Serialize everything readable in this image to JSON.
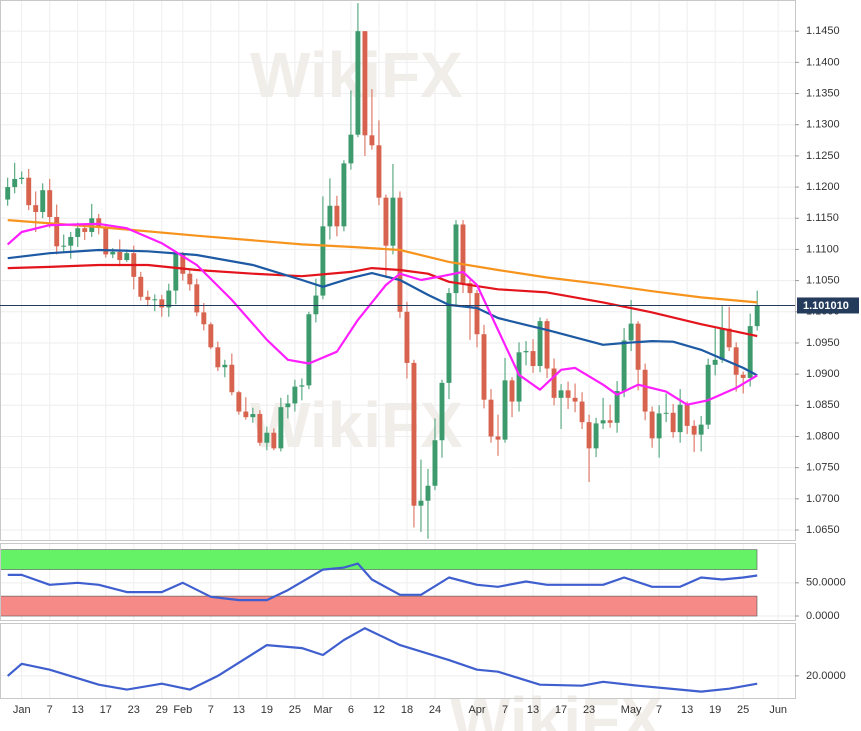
{
  "watermark": "WikiFX",
  "chart_data": [
    {
      "type": "candlestick",
      "xlim": [
        -1.1,
        112.4
      ],
      "ylim": [
        1.0634,
        1.15
      ],
      "grid": true,
      "up_color": "#3c9a6c",
      "down_color": "#d7624e",
      "yticks": [
        {
          "value": 1.065,
          "label": "1.0650"
        },
        {
          "value": 1.07,
          "label": "1.0700"
        },
        {
          "value": 1.075,
          "label": "1.0750"
        },
        {
          "value": 1.08,
          "label": "1.0800"
        },
        {
          "value": 1.085,
          "label": "1.0850"
        },
        {
          "value": 1.09,
          "label": "1.0900"
        },
        {
          "value": 1.095,
          "label": "1.0950"
        },
        {
          "value": 1.1,
          "label": "1.1000"
        },
        {
          "value": 1.105,
          "label": "1.1050"
        },
        {
          "value": 1.11,
          "label": "1.1100"
        },
        {
          "value": 1.115,
          "label": "1.1150"
        },
        {
          "value": 1.12,
          "label": "1.1200"
        },
        {
          "value": 1.125,
          "label": "1.1250"
        },
        {
          "value": 1.13,
          "label": "1.1300"
        },
        {
          "value": 1.135,
          "label": "1.1350"
        },
        {
          "value": 1.14,
          "label": "1.1400"
        },
        {
          "value": 1.145,
          "label": "1.1450"
        }
      ],
      "open": [
        1.118,
        1.12,
        1.1213,
        1.1215,
        1.1171,
        1.116,
        1.1195,
        1.1152,
        1.1105,
        1.1106,
        1.112,
        1.1134,
        1.1128,
        1.115,
        1.1136,
        1.1092,
        1.1096,
        1.1083,
        1.1094,
        1.1056,
        1.1024,
        1.1019,
        1.102,
        1.1007,
        1.1034,
        1.1093,
        1.1061,
        1.1044,
        1.0999,
        1.098,
        1.0943,
        1.0911,
        1.0915,
        1.0871,
        1.084,
        1.0831,
        1.0836,
        1.079,
        1.0806,
        1.0781,
        1.0847,
        1.0853,
        1.088,
        1.0882,
        1.0996,
        1.1026,
        1.1137,
        1.117,
        1.1137,
        1.1238,
        1.1284,
        1.145,
        1.1283,
        1.1267,
        1.1183,
        1.1106,
        1.1183,
        1.1,
        1.0918,
        1.0689,
        1.0697,
        1.0721,
        1.0794,
        1.0886,
        1.103,
        1.114,
        1.1046,
        1.103,
        1.0964,
        1.0859,
        1.08,
        1.0795,
        1.089,
        1.0856,
        1.0935,
        1.0937,
        1.0913,
        1.0985,
        1.0909,
        1.0862,
        1.0874,
        1.0862,
        1.0856,
        1.0823,
        1.0781,
        1.0821,
        1.0826,
        1.0822,
        1.0873,
        1.0954,
        1.0981,
        1.0907,
        1.084,
        1.0797,
        1.0837,
        1.0838,
        1.0807,
        1.0851,
        1.0817,
        1.0803,
        1.0819,
        1.0915,
        1.0923,
        1.0973,
        1.0943,
        1.0899,
        1.0894,
        1.0977
      ],
      "high": [
        1.1215,
        1.1239,
        1.1225,
        1.1229,
        1.1193,
        1.1206,
        1.1213,
        1.1172,
        1.1124,
        1.1128,
        1.1143,
        1.1142,
        1.1173,
        1.1157,
        1.1139,
        1.1102,
        1.1116,
        1.11,
        1.1106,
        1.1064,
        1.1034,
        1.1028,
        1.1027,
        1.1045,
        1.1096,
        1.1096,
        1.1068,
        1.1053,
        1.1014,
        1.0983,
        1.0952,
        1.0923,
        1.0933,
        1.0873,
        1.0863,
        1.0846,
        1.0842,
        1.0816,
        1.0813,
        1.0862,
        1.0867,
        1.0891,
        1.0893,
        1.1,
        1.1053,
        1.1185,
        1.1214,
        1.1186,
        1.1243,
        1.1355,
        1.1495,
        1.145,
        1.1357,
        1.1307,
        1.1188,
        1.1237,
        1.1193,
        1.1016,
        1.0923,
        1.0763,
        1.0748,
        1.0829,
        1.0891,
        1.1038,
        1.1147,
        1.1147,
        1.1054,
        1.1035,
        1.0979,
        1.0876,
        1.0835,
        1.0926,
        1.0895,
        1.0951,
        1.0953,
        1.0956,
        1.0991,
        1.0989,
        1.0925,
        1.0884,
        1.0888,
        1.0885,
        1.0871,
        1.0835,
        1.083,
        1.0862,
        1.0851,
        1.0889,
        1.0974,
        1.1019,
        1.0985,
        1.0917,
        1.0848,
        1.085,
        1.0869,
        1.0852,
        1.0876,
        1.0856,
        1.0826,
        1.0833,
        1.0925,
        1.0976,
        1.1009,
        1.1008,
        1.0951,
        1.0904,
        1.0997,
        1.1034
      ],
      "low": [
        1.117,
        1.119,
        1.1205,
        1.1163,
        1.1128,
        1.115,
        1.1135,
        1.1092,
        1.1095,
        1.1085,
        1.1104,
        1.1115,
        1.112,
        1.1124,
        1.1087,
        1.1086,
        1.1073,
        1.108,
        1.1036,
        1.1018,
        1.1009,
        1.1001,
        1.0992,
        1.0992,
        1.1012,
        1.105,
        1.1034,
        1.0993,
        1.097,
        1.094,
        1.0905,
        1.0895,
        1.0866,
        1.0835,
        1.0827,
        1.0822,
        1.0785,
        1.0778,
        1.0778,
        1.0776,
        1.0829,
        1.084,
        1.0858,
        1.0876,
        1.0983,
        1.102,
        1.1116,
        1.1121,
        1.1129,
        1.1228,
        1.128,
        1.125,
        1.126,
        1.1171,
        1.1054,
        1.1092,
        1.099,
        1.0893,
        1.0654,
        1.0647,
        1.0636,
        1.0714,
        1.0766,
        1.086,
        1.101,
        1.103,
        1.0955,
        1.0943,
        1.0845,
        1.079,
        1.0769,
        1.079,
        1.0831,
        1.084,
        1.0914,
        1.0902,
        1.0903,
        1.0894,
        1.085,
        1.0812,
        1.0844,
        1.0839,
        1.0812,
        1.0727,
        1.0767,
        1.0812,
        1.0814,
        1.0806,
        1.0863,
        1.0937,
        1.0874,
        1.0826,
        1.0782,
        1.0766,
        1.0823,
        1.0798,
        1.079,
        1.0804,
        1.0775,
        1.0776,
        1.0812,
        1.0898,
        1.0918,
        1.0937,
        1.0872,
        1.0869,
        1.088,
        1.097
      ],
      "close": [
        1.12,
        1.1213,
        1.1215,
        1.1171,
        1.116,
        1.1195,
        1.1152,
        1.1105,
        1.1106,
        1.112,
        1.1134,
        1.1128,
        1.115,
        1.1136,
        1.1092,
        1.1096,
        1.1083,
        1.1094,
        1.1056,
        1.1024,
        1.1019,
        1.102,
        1.1007,
        1.1034,
        1.1093,
        1.1061,
        1.1044,
        1.0999,
        1.098,
        1.0943,
        1.0911,
        1.0915,
        1.0871,
        1.084,
        1.0831,
        1.0836,
        1.079,
        1.0806,
        1.0781,
        1.0847,
        1.0853,
        1.088,
        1.0882,
        1.0996,
        1.1026,
        1.1137,
        1.117,
        1.1137,
        1.1238,
        1.1284,
        1.145,
        1.1283,
        1.1267,
        1.1183,
        1.1106,
        1.1183,
        1.1,
        1.0918,
        1.0689,
        1.0697,
        1.0721,
        1.0794,
        1.0886,
        1.103,
        1.114,
        1.1046,
        1.103,
        1.0964,
        1.0859,
        1.08,
        1.0795,
        1.089,
        1.0856,
        1.0935,
        1.0937,
        1.0913,
        1.0985,
        1.0909,
        1.0862,
        1.0874,
        1.0862,
        1.0856,
        1.0823,
        1.0781,
        1.0821,
        1.0826,
        1.0822,
        1.0873,
        1.0954,
        1.0981,
        1.0907,
        1.084,
        1.0797,
        1.0837,
        1.0838,
        1.0807,
        1.0851,
        1.0817,
        1.0803,
        1.0819,
        1.0915,
        1.0923,
        1.0973,
        1.0943,
        1.0899,
        1.0894,
        1.0977,
        1.101
      ],
      "series": [
        {
          "color": "#f7941d",
          "x": [
            0,
            13,
            27,
            42,
            49,
            56,
            63,
            70,
            77,
            85,
            92,
            99,
            107
          ],
          "values": [
            1.1147,
            1.1136,
            1.1122,
            1.1108,
            1.1104,
            1.1099,
            1.108,
            1.1067,
            1.1055,
            1.1044,
            1.1033,
            1.1023,
            1.1015
          ]
        },
        {
          "color": "#e3141c",
          "x": [
            0,
            6,
            13,
            20,
            27,
            35,
            42,
            49,
            52,
            56,
            60,
            63,
            70,
            77,
            85,
            92,
            99,
            107
          ],
          "values": [
            1.107,
            1.1072,
            1.1075,
            1.1075,
            1.1067,
            1.1061,
            1.1057,
            1.1064,
            1.107,
            1.1067,
            1.1061,
            1.1048,
            1.1036,
            1.1031,
            1.1015,
            1.0999,
            1.098,
            1.0961
          ]
        },
        {
          "color": "#1d5aa3",
          "x": [
            0,
            6,
            13,
            20,
            27,
            35,
            42,
            45,
            49,
            52,
            56,
            60,
            63,
            67,
            70,
            74,
            77,
            85,
            88,
            92,
            95,
            99,
            105,
            107
          ],
          "values": [
            1.1086,
            1.1094,
            1.1099,
            1.1097,
            1.1091,
            1.1075,
            1.1051,
            1.104,
            1.1054,
            1.1062,
            1.1051,
            1.1027,
            1.1011,
            1.1006,
            1.099,
            1.0979,
            1.0971,
            1.0947,
            1.095,
            1.0953,
            1.0952,
            1.0939,
            1.091,
            1.0898
          ]
        },
        {
          "color": "#ff1eff",
          "x": [
            0,
            2,
            6,
            13,
            17,
            22,
            27,
            32,
            37,
            40,
            43,
            47,
            50,
            54,
            56,
            59,
            62,
            65,
            67,
            70,
            73,
            76,
            79,
            81,
            85,
            87,
            90,
            94,
            97,
            100,
            104,
            107
          ],
          "values": [
            1.1108,
            1.1128,
            1.1139,
            1.1141,
            1.1134,
            1.111,
            1.1075,
            1.1019,
            1.0955,
            1.0923,
            1.0917,
            1.0936,
            1.0987,
            1.1043,
            1.1061,
            1.1051,
            1.1057,
            1.1064,
            1.1043,
            1.0971,
            1.0899,
            1.0875,
            1.0907,
            1.091,
            1.0883,
            1.0867,
            1.0883,
            1.0872,
            1.0851,
            1.0858,
            1.0878,
            1.0898
          ]
        }
      ],
      "last_price": {
        "value": 1.10101,
        "label": "1.101010"
      },
      "last_price_color": "#243b5c"
    },
    {
      "type": "line",
      "xlim": [
        -1.1,
        112.4
      ],
      "ylim": [
        -6,
        110
      ],
      "grid": true,
      "yticks": [
        {
          "value": 0,
          "label": "0.0000"
        },
        {
          "value": 50,
          "label": "50.0000"
        }
      ],
      "bands": [
        {
          "from": 70,
          "to": 100,
          "color": "#66f266"
        },
        {
          "from": 0,
          "to": 30,
          "color": "#f58a86"
        }
      ],
      "series": [
        {
          "color": "#3f5fcf",
          "x": [
            0,
            2,
            6,
            10,
            13,
            17,
            22,
            25,
            29,
            33,
            37,
            40,
            45,
            48,
            50,
            52,
            56,
            59,
            63,
            67,
            70,
            74,
            77,
            81,
            85,
            88,
            92,
            96,
            99,
            102,
            105,
            107
          ],
          "values": [
            62,
            62,
            47,
            50,
            47,
            36,
            36,
            50,
            29,
            24,
            24,
            39,
            70,
            73,
            79,
            55,
            32,
            32,
            58,
            47,
            44,
            52,
            47,
            47,
            47,
            58,
            44,
            44,
            58,
            55,
            58,
            61
          ]
        }
      ]
    },
    {
      "type": "line",
      "xlim": [
        -1.1,
        112.4
      ],
      "ylim": [
        11,
        41.5
      ],
      "grid": true,
      "yticks": [
        {
          "value": 20,
          "label": "20.0000"
        }
      ],
      "xticks": [
        {
          "value": 2,
          "label": "Jan"
        },
        {
          "value": 6,
          "label": "7"
        },
        {
          "value": 10,
          "label": "13"
        },
        {
          "value": 14,
          "label": "17"
        },
        {
          "value": 18,
          "label": "23"
        },
        {
          "value": 22,
          "label": "29"
        },
        {
          "value": 25,
          "label": "Feb"
        },
        {
          "value": 29,
          "label": "7"
        },
        {
          "value": 33,
          "label": "13"
        },
        {
          "value": 37,
          "label": "19"
        },
        {
          "value": 41,
          "label": "25"
        },
        {
          "value": 45,
          "label": "Mar"
        },
        {
          "value": 49,
          "label": "6"
        },
        {
          "value": 53,
          "label": "12"
        },
        {
          "value": 57,
          "label": "18"
        },
        {
          "value": 61,
          "label": "24"
        },
        {
          "value": 67,
          "label": "Apr"
        },
        {
          "value": 71,
          "label": "7"
        },
        {
          "value": 75,
          "label": "13"
        },
        {
          "value": 79,
          "label": "17"
        },
        {
          "value": 83,
          "label": "23"
        },
        {
          "value": 89,
          "label": "May"
        },
        {
          "value": 93,
          "label": "7"
        },
        {
          "value": 97,
          "label": "13"
        },
        {
          "value": 101,
          "label": "19"
        },
        {
          "value": 105,
          "label": "25"
        },
        {
          "value": 110,
          "label": "Jun"
        }
      ],
      "series": [
        {
          "color": "#3f5fcf",
          "x": [
            0,
            2,
            6,
            13,
            17,
            22,
            26,
            30,
            37,
            42,
            45,
            48,
            51,
            56,
            63,
            67,
            70,
            76,
            82,
            85,
            90,
            96,
            99,
            103,
            107
          ],
          "values": [
            20,
            24.9,
            22.5,
            16.4,
            14.4,
            16.8,
            14.4,
            20,
            32.5,
            31.3,
            28.5,
            34.6,
            39.4,
            32.5,
            26.4,
            22.5,
            21.7,
            16.4,
            16,
            17.6,
            16,
            14.4,
            13.6,
            14.8,
            16.8
          ]
        }
      ]
    }
  ]
}
